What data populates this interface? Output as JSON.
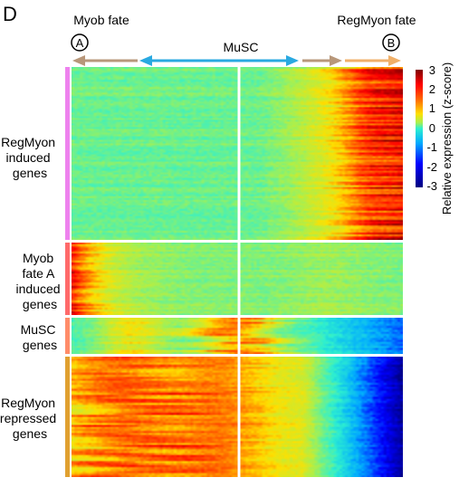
{
  "panel_label": "D",
  "chart_data": {
    "type": "heatmap",
    "title": "",
    "fates": {
      "left": {
        "name": "Myob fate",
        "marker": "A"
      },
      "center": {
        "name": "MuSC"
      },
      "right": {
        "name": "RegMyon fate",
        "marker": "B"
      }
    },
    "colorbar": {
      "label": "Relative expression (z-score)",
      "range": [
        -3,
        3
      ],
      "ticks": [
        "3",
        "2",
        "1",
        "0",
        "-1",
        "-2",
        "-3"
      ],
      "colors": [
        "#00007f",
        "#0000ff",
        "#00aaff",
        "#2ef0d0",
        "#a8f050",
        "#ffe000",
        "#ff6600",
        "#ff0000",
        "#7f0000"
      ]
    },
    "arrow_colors": {
      "myob": "#b8977a",
      "musc": "#29a9e1",
      "regmyon": "#f0b06a"
    },
    "gene_groups": [
      {
        "name": "RegMyon induced genes",
        "lines": [
          "RegMyon",
          "induced",
          "genes"
        ],
        "color": "#ee82ee",
        "rows": 95,
        "pattern": "right-high"
      },
      {
        "name": "Myob fate A induced genes",
        "lines": [
          "Myob",
          "fate A",
          "induced",
          "genes"
        ],
        "color": "#ff6a6a",
        "rows": 40,
        "pattern": "left-high"
      },
      {
        "name": "MuSC genes",
        "lines": [
          "MuSC",
          "genes"
        ],
        "color": "#ff8c69",
        "rows": 18,
        "pattern": "center-high"
      },
      {
        "name": "RegMyon repressed genes",
        "lines": [
          "RegMyon",
          "repressed",
          "genes"
        ],
        "color": "#e0a030",
        "rows": 60,
        "pattern": "right-low"
      }
    ]
  }
}
